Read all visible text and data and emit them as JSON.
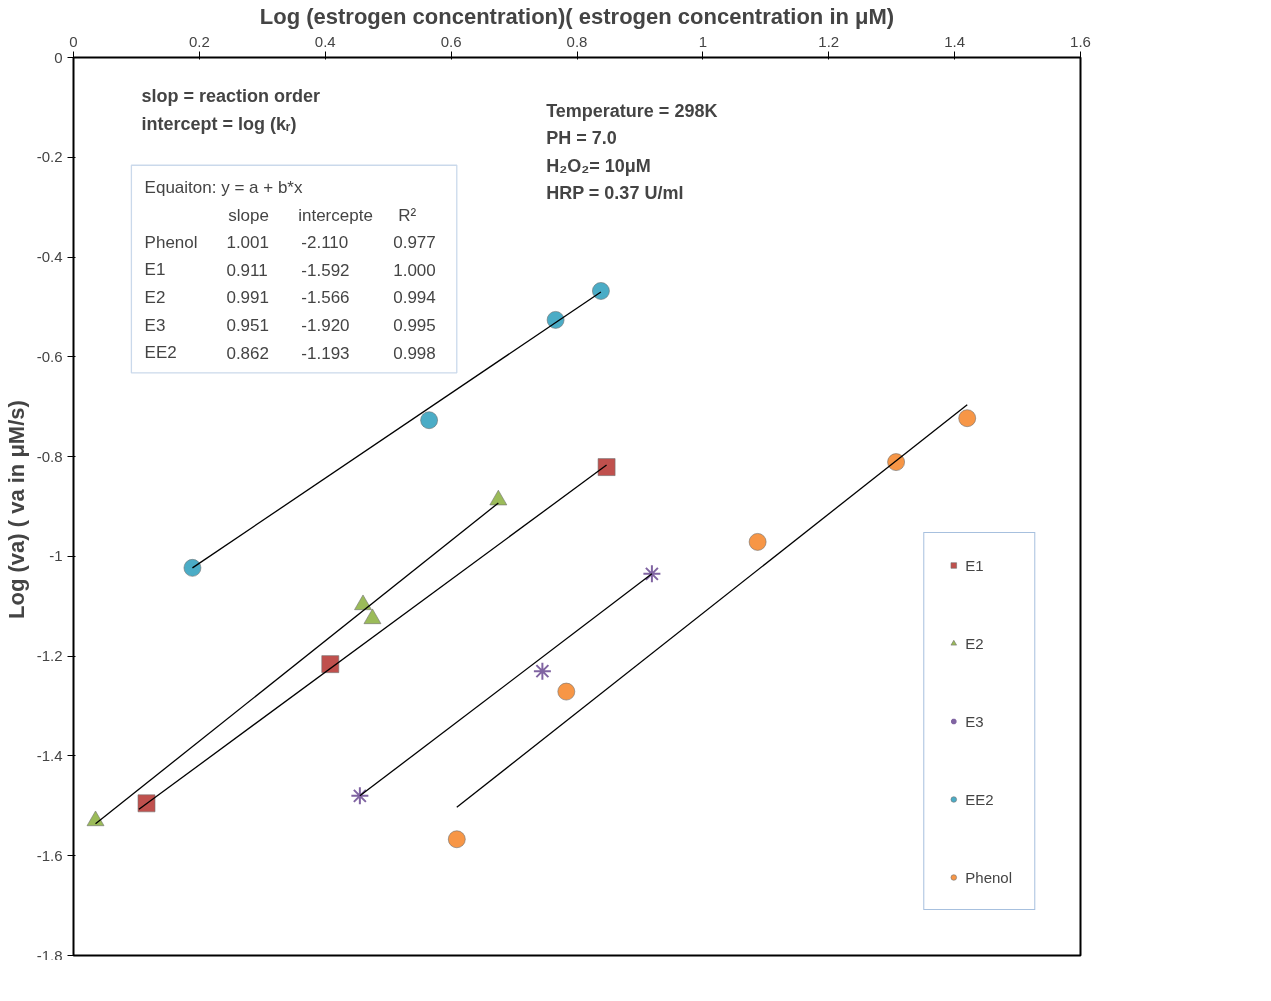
{
  "chart_data": {
    "type": "scatter",
    "xlabel": "Log (estrogen concentration)( estrogen concentration in μM)",
    "ylabel": "Log (va)  ( va in μM/s)",
    "xlim": [
      0,
      1.6
    ],
    "xticks": [
      0,
      0.2,
      0.4,
      0.6,
      0.8,
      1,
      1.2,
      1.4,
      1.6
    ],
    "ylim": [
      -1.8,
      0
    ],
    "yticks": [
      0,
      -0.2,
      -0.4,
      -0.6,
      -0.8,
      -1,
      -1.2,
      -1.4,
      -1.6,
      -1.8
    ],
    "grid": false,
    "legend": "right",
    "series": [
      {
        "name": "E1",
        "marker": "square",
        "color": "#c0504d",
        "x": [
          0.116,
          0.408,
          0.847
        ],
        "values": [
          -1.495,
          -1.216,
          -0.821
        ]
      },
      {
        "name": "E2",
        "marker": "triangle",
        "color": "#9bbb59",
        "x": [
          0.035,
          0.46,
          0.475,
          0.675
        ],
        "values": [
          -1.53,
          -1.097,
          -1.125,
          -0.887
        ]
      },
      {
        "name": "E3",
        "marker": "cross",
        "color": "#8064a2",
        "x": [
          0.455,
          0.745,
          0.919
        ],
        "values": [
          -1.48,
          -1.23,
          -1.035
        ]
      },
      {
        "name": "EE2",
        "marker": "circle",
        "color": "#4bacc6",
        "x": [
          0.189,
          0.565,
          0.766,
          0.838
        ],
        "values": [
          -1.023,
          -0.727,
          -0.526,
          -0.468
        ]
      },
      {
        "name": "Phenol",
        "marker": "circle",
        "color": "#f79646",
        "x": [
          0.609,
          0.783,
          1.087,
          1.307,
          1.42
        ],
        "values": [
          -1.567,
          -1.271,
          -0.971,
          -0.811,
          -0.723
        ]
      },
      {
        "type": "line",
        "color": "#000000",
        "x": [
          0.104,
          0.847
        ],
        "values": [
          -1.507,
          -0.817
        ]
      },
      {
        "type": "line",
        "color": "#000000",
        "x": [
          0.035,
          0.675
        ],
        "values": [
          -1.536,
          -0.893
        ]
      },
      {
        "type": "line",
        "color": "#000000",
        "x": [
          0.455,
          0.919
        ],
        "values": [
          -1.48,
          -1.035
        ]
      },
      {
        "type": "line",
        "color": "#000000",
        "x": [
          0.189,
          0.838
        ],
        "values": [
          -1.023,
          -0.47
        ]
      },
      {
        "type": "line",
        "color": "#000000",
        "x": [
          0.609,
          1.42
        ],
        "values": [
          -1.503,
          -0.696
        ]
      }
    ],
    "annotations": [
      "slop = reaction order",
      "intercept = log (kᵣ)",
      "Equaiton: y = a + b*x",
      "slope  intercepte  R²",
      "Phenol  1.001  -2.110  0.977",
      "E1  0.911  -1.592  1.000",
      "E2  0.991  -1.566  0.994",
      "E3  0.951  -1.920  0.995",
      "EE2  0.862  -1.193  0.998",
      "Temperature = 298K",
      "PH = 7.0",
      "H₂O₂= 10μM",
      "HRP = 0.37 U/ml"
    ]
  }
}
